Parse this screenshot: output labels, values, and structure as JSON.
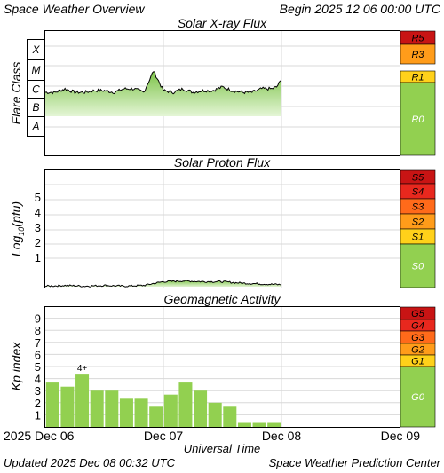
{
  "header": {
    "title": "Space Weather Overview",
    "begin": "Begin 2025 12 06 00:00 UTC"
  },
  "footer": {
    "updated": "Updated 2025 Dec 08 00:32 UTC",
    "center": "Space Weather Prediction Center"
  },
  "colors": {
    "grid": "#d8d8d8",
    "fill_dark": "#7ec44a",
    "fill_light": "#d6efc0",
    "bar": "#92d050",
    "line": "#000000",
    "r0_green": "#92d050",
    "yellow": "#ffd11a",
    "orange": "#ff9c1a",
    "orange_red": "#ff6a1a",
    "red": "#e8281e",
    "dark_red": "#c81414"
  },
  "chart_data": [
    {
      "type": "area",
      "title": "Solar X-ray Flux",
      "ylabel": "Flare Class",
      "y_categories": [
        "A",
        "B",
        "C",
        "M",
        "X"
      ],
      "x_ticks": [
        "2025 Dec 06",
        "Dec 07",
        "Dec 08",
        "Dec 09"
      ],
      "x_range_days": [
        0,
        3
      ],
      "series": [
        {
          "x_hours": [
            0,
            2,
            4,
            6,
            8,
            10,
            12,
            14,
            16,
            18,
            20,
            22,
            24,
            26,
            28,
            30,
            32,
            34,
            36,
            38,
            40,
            42,
            44,
            46,
            47,
            48
          ],
          "level": [
            0.3,
            0.3,
            0.5,
            0.3,
            0.3,
            0.4,
            0.4,
            0.3,
            0.5,
            0.5,
            0.3,
            1.5,
            0.4,
            0.3,
            0.5,
            0.3,
            0.4,
            0.4,
            0.6,
            0.4,
            0.3,
            0.3,
            0.5,
            0.5,
            0.6,
            1.0
          ]
        }
      ],
      "scale": {
        "labels": [
          "R5",
          "R3",
          "R1",
          "R0"
        ],
        "colors": [
          "#c81414",
          "#ff9c1a",
          "#ffd11a",
          "#92d050"
        ]
      }
    },
    {
      "type": "area",
      "title": "Solar Proton Flux",
      "ylabel": "Log10(pfu)",
      "y_ticks": [
        1,
        2,
        3,
        4,
        5
      ],
      "x_ticks": [
        "2025 Dec 06",
        "Dec 07",
        "Dec 08",
        "Dec 09"
      ],
      "series": [
        {
          "x_hours": [
            0,
            4,
            8,
            12,
            16,
            20,
            24,
            28,
            32,
            36,
            40,
            44,
            48
          ],
          "log10_pfu": [
            -0.85,
            -0.8,
            -0.85,
            -0.8,
            -0.85,
            -0.8,
            -0.55,
            -0.5,
            -0.55,
            -0.55,
            -0.65,
            -0.7,
            -0.75
          ]
        }
      ],
      "scale": {
        "labels": [
          "S5",
          "S4",
          "S3",
          "S2",
          "S1",
          "S0"
        ],
        "colors": [
          "#c81414",
          "#e8281e",
          "#ff6a1a",
          "#ff9c1a",
          "#ffd11a",
          "#92d050"
        ]
      }
    },
    {
      "type": "bar",
      "title": "Geomagnetic Activity",
      "ylabel": "Kp index",
      "y_ticks": [
        1,
        2,
        3,
        4,
        5,
        6,
        7,
        8,
        9
      ],
      "ylim": [
        0,
        10
      ],
      "x_ticks": [
        "2025 Dec 06",
        "Dec 07",
        "Dec 08",
        "Dec 09"
      ],
      "xlabel": "Universal Time",
      "values": [
        3.67,
        3.33,
        4.33,
        3.0,
        3.0,
        2.33,
        2.33,
        1.67,
        2.67,
        3.67,
        3.0,
        2.0,
        1.67,
        0.33,
        0.33,
        0.33
      ],
      "annotations": [
        {
          "bar_index": 2,
          "text": "4+"
        }
      ],
      "scale": {
        "labels": [
          "G5",
          "G4",
          "G3",
          "G2",
          "G1",
          "G0"
        ],
        "colors": [
          "#c81414",
          "#e8281e",
          "#ff6a1a",
          "#ff9c1a",
          "#ffd11a",
          "#92d050"
        ]
      }
    }
  ]
}
